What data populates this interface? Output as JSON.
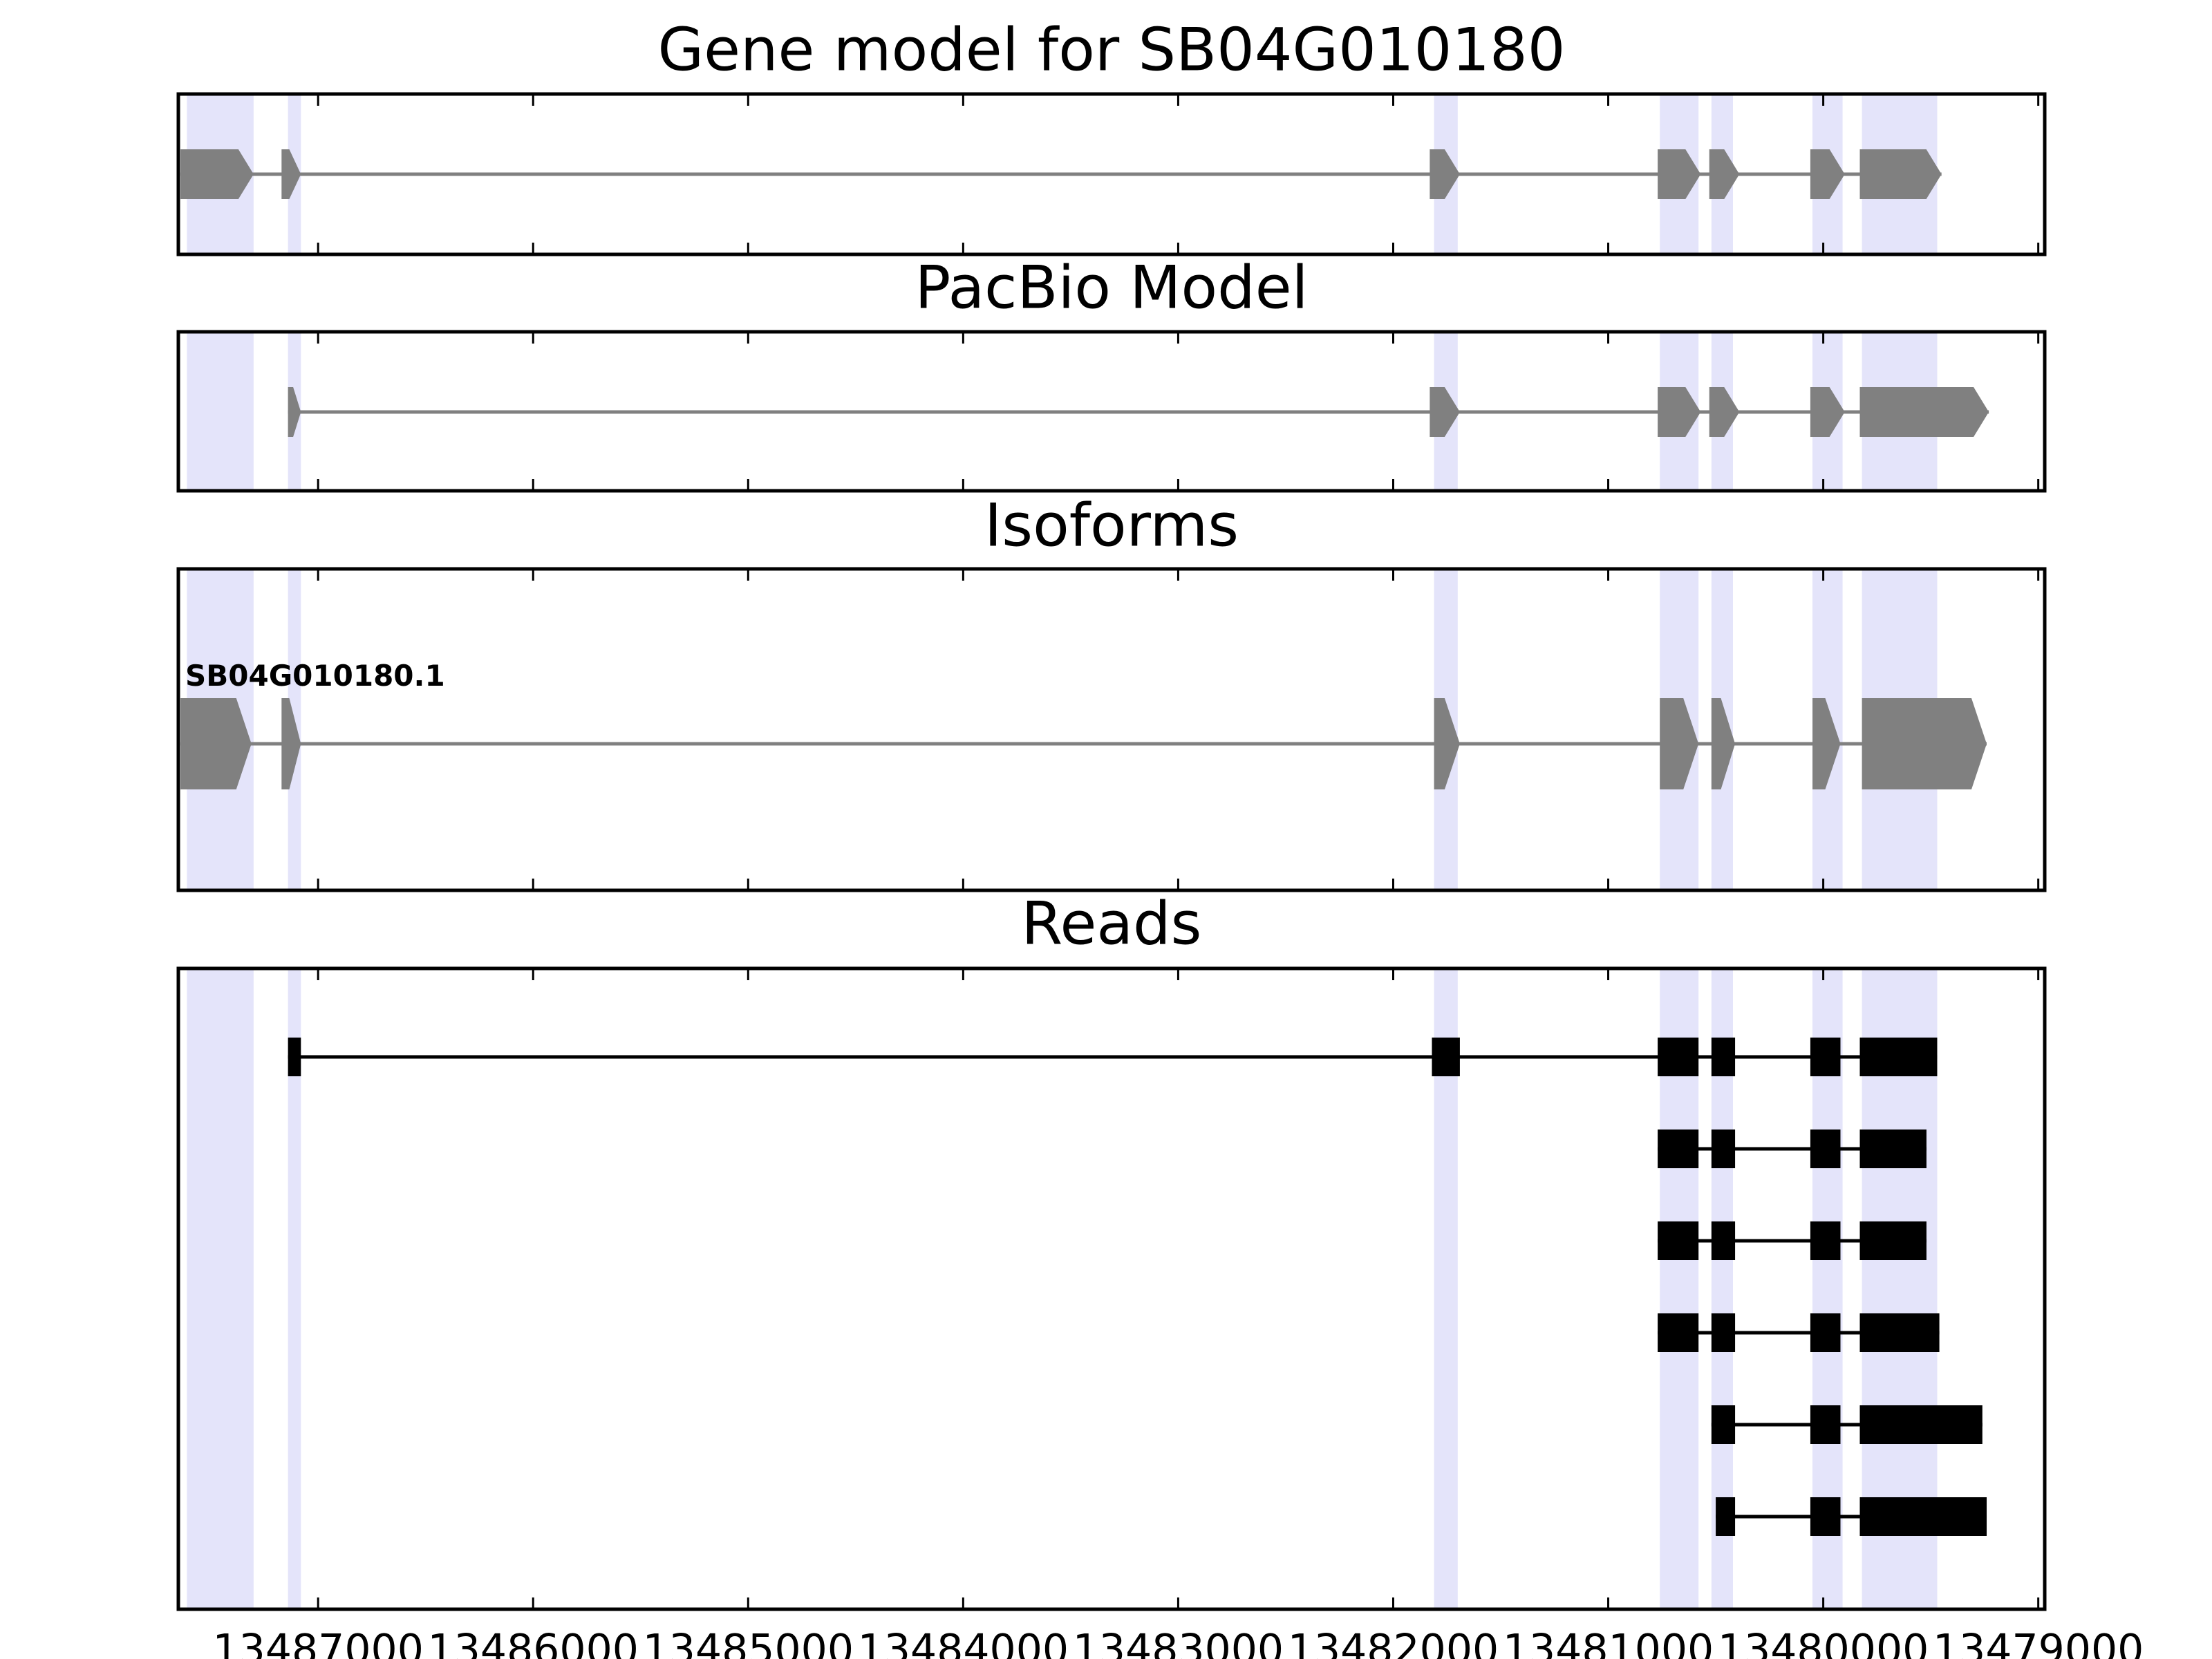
{
  "chart_data": {
    "type": "gene-track",
    "x_axis": {
      "lim": [
        13487650,
        13478970
      ],
      "inverted": true,
      "ticks": [
        13487000,
        13486000,
        13485000,
        13484000,
        13483000,
        13482000,
        13481000,
        13480000,
        13479000
      ],
      "tick_labels": [
        "13487000",
        "13486000",
        "13485000",
        "13484000",
        "13483000",
        "13482000",
        "13481000",
        "13480000",
        "13479000"
      ]
    },
    "exon_highlights": [
      [
        13487610,
        13487300
      ],
      [
        13487140,
        13487080
      ],
      [
        13481810,
        13481700
      ],
      [
        13480760,
        13480580
      ],
      [
        13480520,
        13480420
      ],
      [
        13480050,
        13479910
      ],
      [
        13479820,
        13479470
      ]
    ],
    "panels": [
      {
        "title": "Gene model for SB04G010180",
        "kind": "gene-model",
        "tracks": [
          {
            "label": "",
            "exons": [
              [
                13487640,
                13487300
              ],
              [
                13487170,
                13487080
              ],
              [
                13481830,
                13481690
              ],
              [
                13480770,
                13480570
              ],
              [
                13480530,
                13480390
              ],
              [
                13480060,
                13479900
              ],
              [
                13479830,
                13479450
              ]
            ]
          }
        ]
      },
      {
        "title": "PacBio Model",
        "kind": "gene-model",
        "tracks": [
          {
            "label": "",
            "exons": [
              [
                13487140,
                13487080
              ],
              [
                13481830,
                13481690
              ],
              [
                13480770,
                13480570
              ],
              [
                13480530,
                13480390
              ],
              [
                13480060,
                13479900
              ],
              [
                13479830,
                13479230
              ]
            ]
          }
        ]
      },
      {
        "title": "Isoforms",
        "kind": "gene-model",
        "tracks": [
          {
            "label": "SB04G010180.1",
            "exons": [
              [
                13487640,
                13487310
              ],
              [
                13487170,
                13487080
              ],
              [
                13481810,
                13481690
              ],
              [
                13480760,
                13480580
              ],
              [
                13480520,
                13480410
              ],
              [
                13480050,
                13479920
              ],
              [
                13479820,
                13479240
              ]
            ]
          }
        ]
      },
      {
        "title": "Reads",
        "kind": "reads",
        "tracks": [
          {
            "label": "",
            "exons": [
              [
                13487140,
                13487080
              ],
              [
                13481820,
                13481690
              ],
              [
                13480770,
                13480580
              ],
              [
                13480520,
                13480410
              ],
              [
                13480060,
                13479920
              ],
              [
                13479830,
                13479470
              ]
            ]
          },
          {
            "label": "",
            "exons": [
              [
                13480770,
                13480580
              ],
              [
                13480520,
                13480410
              ],
              [
                13480060,
                13479920
              ],
              [
                13479830,
                13479520
              ]
            ]
          },
          {
            "label": "",
            "exons": [
              [
                13480770,
                13480580
              ],
              [
                13480520,
                13480410
              ],
              [
                13480060,
                13479920
              ],
              [
                13479830,
                13479520
              ]
            ]
          },
          {
            "label": "",
            "exons": [
              [
                13480770,
                13480580
              ],
              [
                13480520,
                13480410
              ],
              [
                13480060,
                13479920
              ],
              [
                13479830,
                13479460
              ]
            ]
          },
          {
            "label": "",
            "exons": [
              [
                13480520,
                13480410
              ],
              [
                13480060,
                13479920
              ],
              [
                13479830,
                13479260
              ]
            ]
          },
          {
            "label": "",
            "exons": [
              [
                13480500,
                13480410
              ],
              [
                13480060,
                13479920
              ],
              [
                13479830,
                13479240
              ]
            ]
          }
        ]
      }
    ],
    "colors": {
      "highlight": "#e4e4fa",
      "model_feature": "#808080",
      "read_feature": "#000000",
      "frame": "#000000"
    }
  }
}
